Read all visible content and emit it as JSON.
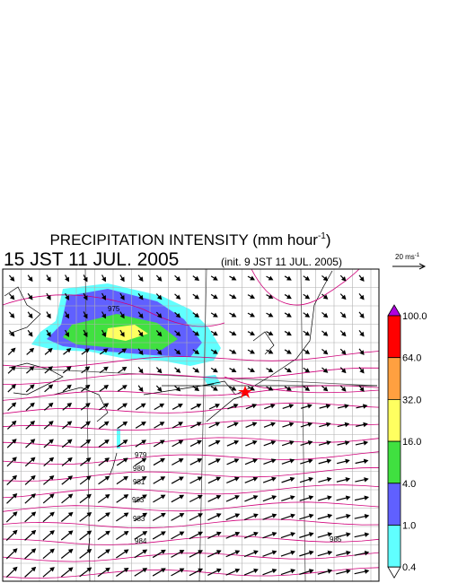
{
  "header": {
    "title": "PRECIPITATION INTENSITY (mm hour",
    "title_exponent": "-1",
    "title_close": ")",
    "valid_time": "15 JST 11 JUL. 2005",
    "init_time": "(init. 9 JST 11 JUL. 2005)"
  },
  "vector_scale": {
    "label": "20 ms",
    "exponent": "-1"
  },
  "colorbar": {
    "top_color": "#b000e0",
    "bottom_color": "#ffffff",
    "labels": [
      "100.0",
      "64.0",
      "32.0",
      "16.0",
      "4.0",
      "1.0",
      "0.4"
    ],
    "colors": [
      "#ff0000",
      "#ffa040",
      "#ffff60",
      "#40e040",
      "#6060ff",
      "#60ffff"
    ]
  },
  "isobar_labels": [
    "975",
    "979",
    "980",
    "981",
    "983",
    "983",
    "984",
    "985"
  ]
}
